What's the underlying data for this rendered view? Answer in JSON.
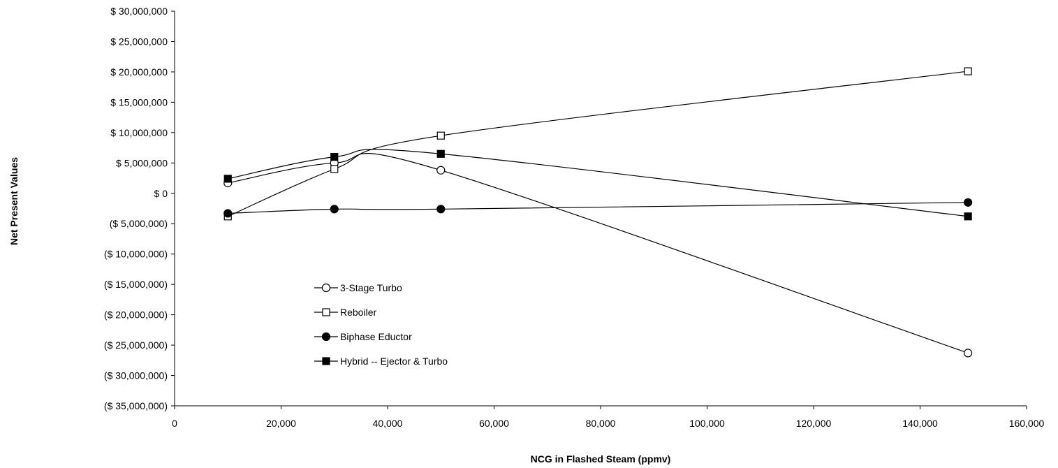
{
  "chart_data": {
    "type": "line",
    "title": "",
    "xlabel": "NCG  in  Flashed Steam  (ppmv)",
    "ylabel": "Net Present Values",
    "xlim": [
      0,
      160000
    ],
    "ylim": [
      -35000000,
      30000000
    ],
    "x_ticks": [
      0,
      20000,
      40000,
      60000,
      80000,
      100000,
      120000,
      140000,
      160000
    ],
    "x_tick_labels": [
      "0",
      "20,000",
      "40,000",
      "60,000",
      "80,000",
      "100,000",
      "120,000",
      "140,000",
      "160,000"
    ],
    "y_ticks": [
      30000000,
      25000000,
      20000000,
      15000000,
      10000000,
      5000000,
      0,
      -5000000,
      -10000000,
      -15000000,
      -20000000,
      -25000000,
      -30000000,
      -35000000
    ],
    "y_tick_labels": [
      "$ 30,000,000",
      "$ 25,000,000",
      "$ 20,000,000",
      "$ 15,000,000",
      "$ 10,000,000",
      "$ 5,000,000",
      "$ 0",
      "($ 5,000,000)",
      "($ 10,000,000)",
      "($ 15,000,000)",
      "($ 20,000,000)",
      "($ 25,000,000)",
      "($ 30,000,000)",
      "($ 35,000,000)"
    ],
    "grid": false,
    "legend_position": "inside-lower-left",
    "series": [
      {
        "name": "3-Stage Turbo",
        "marker": "circle-open",
        "color": "#000000",
        "x": [
          10000,
          30000,
          50000,
          149000
        ],
        "y": [
          1700000,
          5000000,
          3800000,
          -26300000
        ]
      },
      {
        "name": "Reboiler",
        "marker": "square-open",
        "color": "#000000",
        "x": [
          10000,
          30000,
          50000,
          149000
        ],
        "y": [
          -3800000,
          4000000,
          9500000,
          20100000
        ]
      },
      {
        "name": "Biphase Eductor",
        "marker": "circle-filled",
        "color": "#000000",
        "x": [
          10000,
          30000,
          50000,
          149000
        ],
        "y": [
          -3300000,
          -2600000,
          -2600000,
          -1500000
        ]
      },
      {
        "name": "Hybrid -- Ejector & Turbo",
        "marker": "square-filled",
        "color": "#000000",
        "x": [
          10000,
          30000,
          50000,
          149000
        ],
        "y": [
          2400000,
          6000000,
          6500000,
          -3800000
        ]
      }
    ]
  }
}
